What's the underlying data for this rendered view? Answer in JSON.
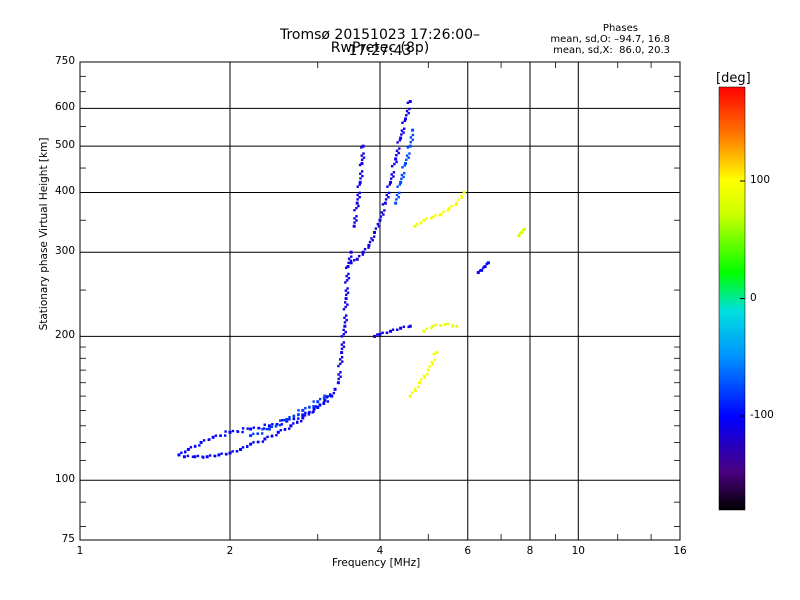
{
  "title_line1": "Tromsø 20151023 17:26:00–17:27:43",
  "title_line2": "RwPretec (8p)",
  "phases": {
    "title": "Phases",
    "line_o": "mean, sd,O: –94.7, 16.8",
    "line_x": "mean, sd,X:  86.0, 20.3"
  },
  "chart_data": {
    "type": "scatter",
    "xlabel": "Frequency [MHz]",
    "ylabel": "Stationary phase Virtual Height [km]",
    "xscale": "log",
    "yscale": "log",
    "xlim": [
      1,
      16
    ],
    "ylim": [
      75,
      750
    ],
    "xticks": [
      1,
      2,
      4,
      6,
      8,
      10,
      16
    ],
    "yticks": [
      75,
      100,
      200,
      300,
      400,
      500,
      600,
      750
    ],
    "grid": true,
    "colorbar": {
      "label": "[deg]",
      "range": [
        -180,
        180
      ],
      "ticks": [
        100,
        0,
        -100
      ],
      "colormap": "rainbow"
    },
    "series": [
      {
        "values": [
          [
            1.62,
            112
          ],
          [
            1.7,
            112
          ],
          [
            1.8,
            112
          ],
          [
            1.9,
            113
          ],
          [
            2.0,
            114
          ],
          [
            2.1,
            116
          ],
          [
            2.2,
            119
          ],
          [
            2.35,
            122
          ],
          [
            2.5,
            126
          ],
          [
            2.65,
            130
          ],
          [
            2.8,
            135
          ],
          [
            2.95,
            141
          ],
          [
            3.1,
            147
          ],
          [
            3.25,
            155
          ]
        ],
        "phase": -105
      },
      {
        "values": [
          [
            1.58,
            113
          ],
          [
            1.65,
            116
          ],
          [
            1.75,
            120
          ],
          [
            1.85,
            123
          ],
          [
            2.0,
            126
          ],
          [
            2.2,
            128
          ],
          [
            2.4,
            130
          ],
          [
            2.6,
            133
          ],
          [
            2.8,
            137
          ],
          [
            3.0,
            142
          ],
          [
            3.2,
            150
          ]
        ],
        "phase": -100
      },
      {
        "values": [
          [
            2.2,
            124
          ],
          [
            2.4,
            128
          ],
          [
            2.6,
            134
          ],
          [
            2.8,
            140
          ],
          [
            3.0,
            146
          ],
          [
            3.1,
            150
          ]
        ],
        "phase": -80
      },
      {
        "values": [
          [
            3.3,
            160
          ],
          [
            3.35,
            185
          ],
          [
            3.4,
            210
          ],
          [
            3.42,
            240
          ],
          [
            3.45,
            280
          ],
          [
            3.5,
            300
          ]
        ],
        "phase": -110
      },
      {
        "values": [
          [
            3.5,
            285
          ],
          [
            3.6,
            290
          ],
          [
            3.7,
            300
          ],
          [
            3.8,
            310
          ],
          [
            3.9,
            330
          ],
          [
            4.0,
            350
          ],
          [
            4.1,
            380
          ],
          [
            4.2,
            420
          ],
          [
            4.3,
            470
          ],
          [
            4.4,
            520
          ],
          [
            4.5,
            570
          ],
          [
            4.6,
            620
          ]
        ],
        "phase": -110
      },
      {
        "values": [
          [
            3.55,
            340
          ],
          [
            3.6,
            380
          ],
          [
            3.65,
            420
          ],
          [
            3.68,
            460
          ],
          [
            3.7,
            500
          ]
        ],
        "phase": -110
      },
      {
        "values": [
          [
            3.9,
            200
          ],
          [
            4.0,
            202
          ],
          [
            4.2,
            205
          ],
          [
            4.4,
            208
          ],
          [
            4.6,
            210
          ]
        ],
        "phase": -110
      },
      {
        "values": [
          [
            4.3,
            380
          ],
          [
            4.4,
            420
          ],
          [
            4.5,
            460
          ],
          [
            4.6,
            500
          ],
          [
            4.65,
            540
          ]
        ],
        "phase": -75
      },
      {
        "values": [
          [
            4.7,
            340
          ],
          [
            4.9,
            350
          ],
          [
            5.1,
            355
          ],
          [
            5.3,
            360
          ],
          [
            5.5,
            370
          ],
          [
            5.7,
            380
          ],
          [
            5.9,
            400
          ]
        ],
        "phase": 95
      },
      {
        "values": [
          [
            4.6,
            150
          ],
          [
            4.8,
            160
          ],
          [
            5.0,
            170
          ],
          [
            5.2,
            185
          ]
        ],
        "phase": 95
      },
      {
        "values": [
          [
            4.9,
            205
          ],
          [
            5.1,
            210
          ],
          [
            5.4,
            212
          ],
          [
            5.7,
            210
          ]
        ],
        "phase": 90
      },
      {
        "values": [
          [
            6.3,
            272
          ],
          [
            6.4,
            275
          ],
          [
            6.5,
            280
          ],
          [
            6.6,
            285
          ]
        ],
        "phase": -105
      },
      {
        "values": [
          [
            7.6,
            325
          ],
          [
            7.7,
            330
          ],
          [
            7.8,
            335
          ]
        ],
        "phase": 80
      }
    ]
  }
}
